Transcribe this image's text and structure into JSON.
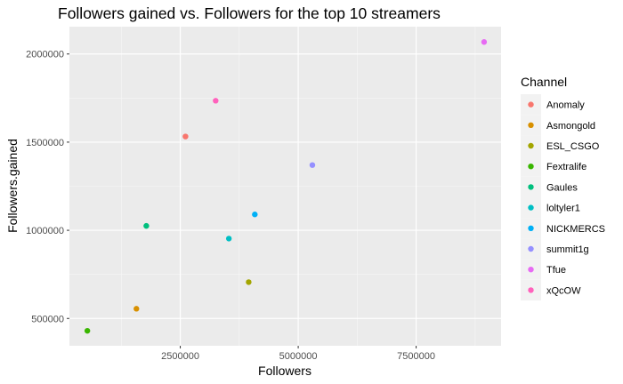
{
  "chart_data": {
    "type": "scatter",
    "title": "Followers gained vs. Followers for the top 10 streamers",
    "xlabel": "Followers",
    "ylabel": "Followers.gained",
    "xlim": [
      150000,
      9300000
    ],
    "ylim": [
      345000,
      2155000
    ],
    "x_ticks": [
      2500000,
      5000000,
      7500000
    ],
    "x_tick_labels": [
      "2500000",
      "5000000",
      "7500000"
    ],
    "y_ticks": [
      500000,
      1000000,
      1500000,
      2000000
    ],
    "y_tick_labels": [
      "500000",
      "1000000",
      "1500000",
      "2000000"
    ],
    "grid": true,
    "panel_background": "#ebebeb",
    "legend": {
      "title": "Channel",
      "position": "right"
    },
    "series": [
      {
        "name": "Anomaly",
        "color": "#F8766D",
        "x": 2610000,
        "y": 1532000
      },
      {
        "name": "Asmongold",
        "color": "#D89000",
        "x": 1570000,
        "y": 555000
      },
      {
        "name": "ESL_CSGO",
        "color": "#A3A500",
        "x": 3950000,
        "y": 706000
      },
      {
        "name": "Fextralife",
        "color": "#39B600",
        "x": 530000,
        "y": 430000
      },
      {
        "name": "Gaules",
        "color": "#00BF7D",
        "x": 1780000,
        "y": 1025000
      },
      {
        "name": "loltyler1",
        "color": "#00BFC4",
        "x": 3530000,
        "y": 953000
      },
      {
        "name": "NICKMERCS",
        "color": "#00B0F6",
        "x": 4080000,
        "y": 1090000
      },
      {
        "name": "summit1g",
        "color": "#9590FF",
        "x": 5300000,
        "y": 1370000
      },
      {
        "name": "Tfue",
        "color": "#E76BF3",
        "x": 8940000,
        "y": 2068000
      },
      {
        "name": "xQcOW",
        "color": "#FF62BC",
        "x": 3250000,
        "y": 1735000
      }
    ]
  }
}
